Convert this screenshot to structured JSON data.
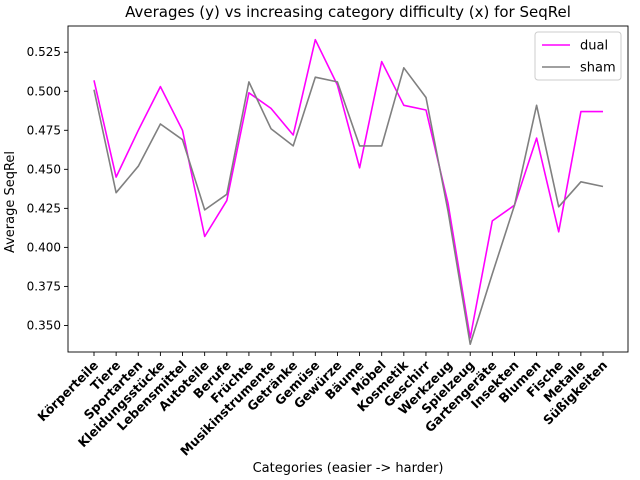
{
  "chart_data": {
    "type": "line",
    "title": "Averages (y) vs increasing category difficulty (x) for SeqRel",
    "xlabel": "Categories (easier -> harder)",
    "ylabel": "Average SeqRel",
    "ylim": [
      0.333,
      0.5418
    ],
    "yticks": [
      0.35,
      0.375,
      0.4,
      0.425,
      0.45,
      0.475,
      0.5,
      0.525
    ],
    "ytick_labels": [
      "0.350",
      "0.375",
      "0.400",
      "0.425",
      "0.450",
      "0.475",
      "0.500",
      "0.525"
    ],
    "legend_position": "top-right",
    "grid": false,
    "categories": [
      "Körperteile",
      "Tiere",
      "Sportarten",
      "Kleidungsstücke",
      "Lebensmittel",
      "Autoteile",
      "Berufe",
      "Früchte",
      "Musikinstrumente",
      "Getränke",
      "Gemüse",
      "Gewürze",
      "Bäume",
      "Möbel",
      "Kosmetik",
      "Geschirr",
      "Werkzeug",
      "Spielzeug",
      "Gartengeräte",
      "Insekten",
      "Blumen",
      "Fische",
      "Metalle",
      "Süßigkeiten"
    ],
    "series": [
      {
        "name": "dual",
        "color": "#ff00ff",
        "values": [
          0.507,
          0.445,
          0.475,
          0.503,
          0.475,
          0.407,
          0.43,
          0.499,
          0.489,
          0.472,
          0.533,
          0.504,
          0.451,
          0.519,
          0.491,
          0.488,
          0.428,
          0.342,
          0.417,
          0.427,
          0.47,
          0.41,
          0.487,
          0.487
        ]
      },
      {
        "name": "sham",
        "color": "#808080",
        "values": [
          0.501,
          0.435,
          0.452,
          0.479,
          0.469,
          0.424,
          0.434,
          0.506,
          0.476,
          0.465,
          0.509,
          0.506,
          0.465,
          0.465,
          0.515,
          0.496,
          0.423,
          0.338,
          0.383,
          0.427,
          0.491,
          0.426,
          0.442,
          0.439
        ]
      }
    ]
  }
}
